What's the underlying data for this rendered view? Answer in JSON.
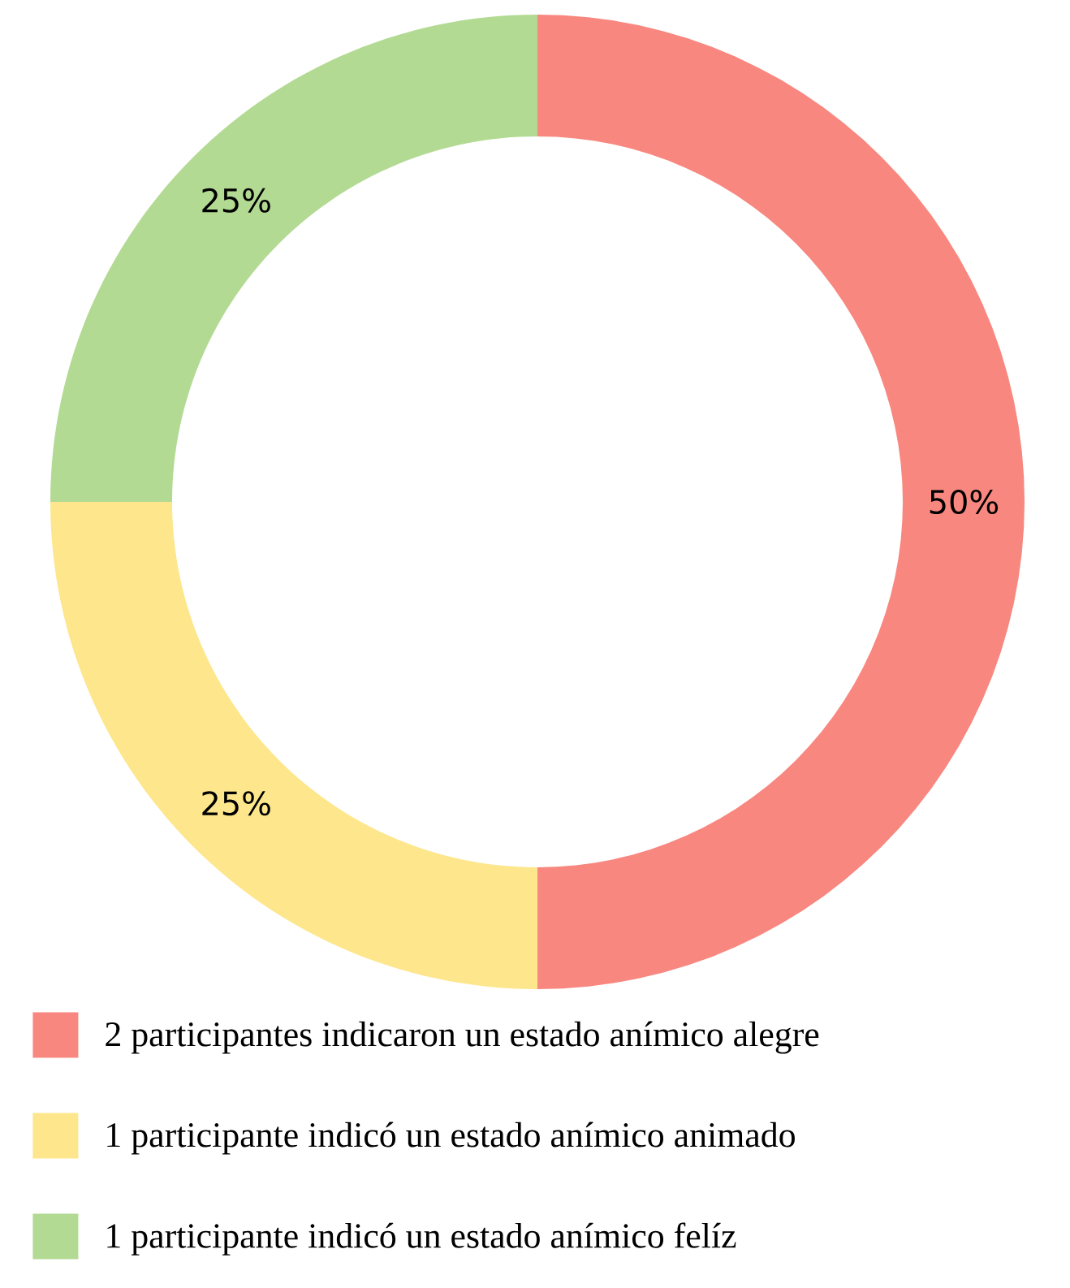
{
  "chart_data": {
    "type": "donut",
    "categories": [
      "2 participantes indicaron un estado anímico alegre",
      "1 participante indicó un estado anímico animado",
      "1 participante indicó un estado anímico felíz"
    ],
    "values": [
      50,
      25,
      25
    ],
    "colors": [
      "#f8877f",
      "#fde68b",
      "#b3da93"
    ],
    "value_labels": [
      "50%",
      "25%",
      "25%"
    ],
    "legend": "bottom"
  }
}
